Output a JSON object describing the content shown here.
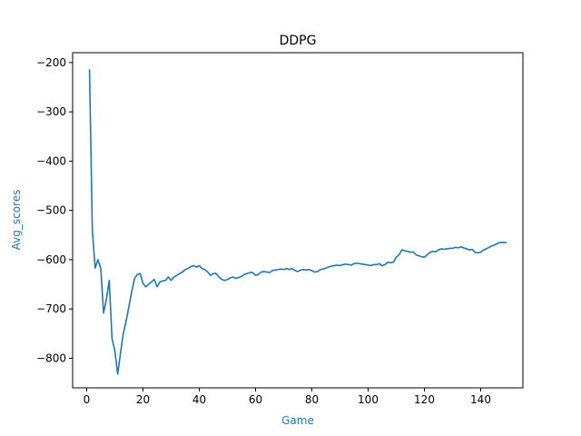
{
  "chart_data": {
    "type": "line",
    "title": "DDPG",
    "xlabel": "Game",
    "ylabel": "Avg_scores",
    "xlim": [
      -5,
      155
    ],
    "ylim": [
      -860,
      -180
    ],
    "xticks": [
      0,
      20,
      40,
      60,
      80,
      100,
      120,
      140
    ],
    "yticks": [
      -200,
      -300,
      -400,
      -500,
      -600,
      -700,
      -800
    ],
    "xtick_labels": [
      "0",
      "20",
      "40",
      "60",
      "80",
      "100",
      "120",
      "140"
    ],
    "ytick_labels": [
      "−200",
      "−300",
      "−400",
      "−500",
      "−600",
      "−700",
      "−800"
    ],
    "grid": false,
    "colors": {
      "line": "#1f77b4",
      "label": "#1f77b4",
      "axis": "#000000"
    },
    "series": [
      {
        "name": "Avg_scores",
        "x": [
          1,
          2,
          3,
          4,
          5,
          6,
          7,
          8,
          9,
          10,
          11,
          12,
          13,
          14,
          15,
          16,
          17,
          18,
          19,
          20,
          21,
          22,
          23,
          24,
          25,
          26,
          27,
          28,
          29,
          30,
          31,
          32,
          33,
          34,
          35,
          36,
          37,
          38,
          39,
          40,
          41,
          42,
          43,
          44,
          45,
          46,
          47,
          48,
          49,
          50,
          51,
          52,
          53,
          54,
          55,
          56,
          57,
          58,
          59,
          60,
          61,
          62,
          63,
          64,
          65,
          66,
          67,
          68,
          69,
          70,
          71,
          72,
          73,
          74,
          75,
          76,
          77,
          78,
          79,
          80,
          81,
          82,
          83,
          84,
          85,
          86,
          87,
          88,
          89,
          90,
          91,
          92,
          93,
          94,
          95,
          96,
          97,
          98,
          99,
          100,
          101,
          102,
          103,
          104,
          105,
          106,
          107,
          108,
          109,
          110,
          111,
          112,
          113,
          114,
          115,
          116,
          117,
          118,
          119,
          120,
          121,
          122,
          123,
          124,
          125,
          126,
          127,
          128,
          129,
          130,
          131,
          132,
          133,
          134,
          135,
          136,
          137,
          138,
          139,
          140,
          141,
          142,
          143,
          144,
          145,
          146,
          147,
          148,
          149
        ],
        "values": [
          -215,
          -540,
          -617,
          -600,
          -618,
          -708,
          -680,
          -642,
          -760,
          -785,
          -832,
          -790,
          -750,
          -725,
          -695,
          -665,
          -638,
          -630,
          -628,
          -648,
          -655,
          -650,
          -645,
          -640,
          -655,
          -645,
          -643,
          -642,
          -635,
          -642,
          -635,
          -632,
          -628,
          -625,
          -620,
          -618,
          -614,
          -612,
          -615,
          -612,
          -618,
          -620,
          -625,
          -632,
          -628,
          -628,
          -635,
          -640,
          -642,
          -640,
          -637,
          -635,
          -638,
          -636,
          -634,
          -630,
          -628,
          -626,
          -626,
          -632,
          -630,
          -625,
          -624,
          -625,
          -626,
          -622,
          -621,
          -620,
          -619,
          -620,
          -618,
          -620,
          -618,
          -622,
          -624,
          -621,
          -620,
          -621,
          -620,
          -622,
          -625,
          -624,
          -620,
          -619,
          -617,
          -615,
          -613,
          -612,
          -611,
          -612,
          -610,
          -609,
          -610,
          -611,
          -608,
          -607,
          -608,
          -609,
          -610,
          -611,
          -612,
          -610,
          -610,
          -608,
          -612,
          -610,
          -605,
          -606,
          -605,
          -595,
          -590,
          -580,
          -582,
          -583,
          -585,
          -584,
          -590,
          -592,
          -594,
          -595,
          -590,
          -585,
          -583,
          -584,
          -580,
          -578,
          -579,
          -578,
          -577,
          -577,
          -575,
          -576,
          -574,
          -576,
          -578,
          -580,
          -579,
          -585,
          -586,
          -585,
          -580,
          -578,
          -575,
          -572,
          -570,
          -567,
          -565,
          -565,
          -565
        ]
      }
    ]
  }
}
